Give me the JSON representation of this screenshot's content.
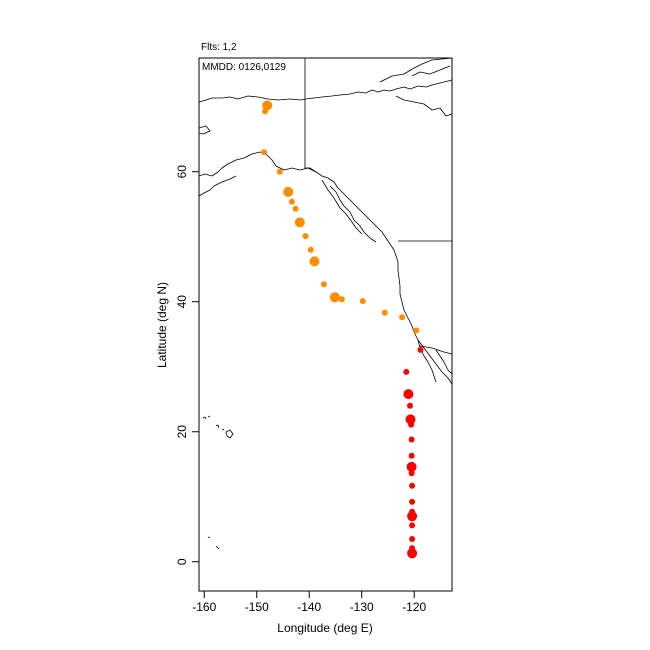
{
  "header": {
    "flights_text": "Flts: 1,2",
    "dates_text": "MMDD: 0126,0129"
  },
  "chart_data": {
    "type": "scatter",
    "xlabel": "Longitude (deg E)",
    "ylabel": "Latitude (deg N)",
    "xlim": [
      -161,
      -112.8
    ],
    "ylim": [
      -4.5,
      77.5
    ],
    "xticks": [
      -160,
      -150,
      -140,
      -130,
      -120
    ],
    "yticks": [
      0,
      20,
      40,
      60
    ],
    "xtick_labels": [
      "-160",
      "-150",
      "-140",
      "-130",
      "-120"
    ],
    "ytick_labels": [
      "0",
      "20",
      "40",
      "60"
    ],
    "grid": false,
    "series": [
      {
        "color": "#ff8c00",
        "points": [
          {
            "lon": -148,
            "lat": 70.2,
            "r": 5
          },
          {
            "lon": -148.4,
            "lat": 69.3,
            "r": 3
          },
          {
            "lon": -148.6,
            "lat": 63.0,
            "r": 3
          },
          {
            "lon": -145.6,
            "lat": 60.0,
            "r": 3
          },
          {
            "lon": -144,
            "lat": 56.9,
            "r": 5
          },
          {
            "lon": -143.3,
            "lat": 55.4,
            "r": 3
          },
          {
            "lon": -142.6,
            "lat": 54.3,
            "r": 3
          },
          {
            "lon": -141.8,
            "lat": 52.2,
            "r": 5
          },
          {
            "lon": -140.7,
            "lat": 50.1,
            "r": 3
          },
          {
            "lon": -139.7,
            "lat": 48.0,
            "r": 3
          },
          {
            "lon": -139,
            "lat": 46.2,
            "r": 5
          },
          {
            "lon": -137.2,
            "lat": 42.7,
            "r": 3
          },
          {
            "lon": -135.1,
            "lat": 40.7,
            "r": 5
          },
          {
            "lon": -133.8,
            "lat": 40.4,
            "r": 3
          },
          {
            "lon": -129.8,
            "lat": 40.1,
            "r": 3
          },
          {
            "lon": -125.6,
            "lat": 38.3,
            "r": 3
          },
          {
            "lon": -122.3,
            "lat": 37.6,
            "r": 3
          },
          {
            "lon": -119.6,
            "lat": 35.6,
            "r": 3
          }
        ]
      },
      {
        "color": "#ff0000",
        "points": [
          {
            "lon": -118.8,
            "lat": 32.6,
            "r": 3
          },
          {
            "lon": -121.5,
            "lat": 29.2,
            "r": 3
          },
          {
            "lon": -121.1,
            "lat": 25.8,
            "r": 5
          },
          {
            "lon": -120.8,
            "lat": 24.0,
            "r": 3
          },
          {
            "lon": -120.7,
            "lat": 21.9,
            "r": 5
          },
          {
            "lon": -120.6,
            "lat": 21.1,
            "r": 3
          },
          {
            "lon": -120.5,
            "lat": 18.8,
            "r": 3
          },
          {
            "lon": -120.5,
            "lat": 16.3,
            "r": 3
          },
          {
            "lon": -120.5,
            "lat": 14.6,
            "r": 5
          },
          {
            "lon": -120.5,
            "lat": 13.6,
            "r": 3
          },
          {
            "lon": -120.4,
            "lat": 11.7,
            "r": 3
          },
          {
            "lon": -120.4,
            "lat": 9.2,
            "r": 3
          },
          {
            "lon": -120.4,
            "lat": 7.7,
            "r": 3
          },
          {
            "lon": -120.4,
            "lat": 7.0,
            "r": 5
          },
          {
            "lon": -120.4,
            "lat": 5.6,
            "r": 3
          },
          {
            "lon": -120.4,
            "lat": 3.5,
            "r": 3
          },
          {
            "lon": -120.4,
            "lat": 2.1,
            "r": 3
          },
          {
            "lon": -120.4,
            "lat": 1.3,
            "r": 5
          }
        ]
      }
    ]
  }
}
